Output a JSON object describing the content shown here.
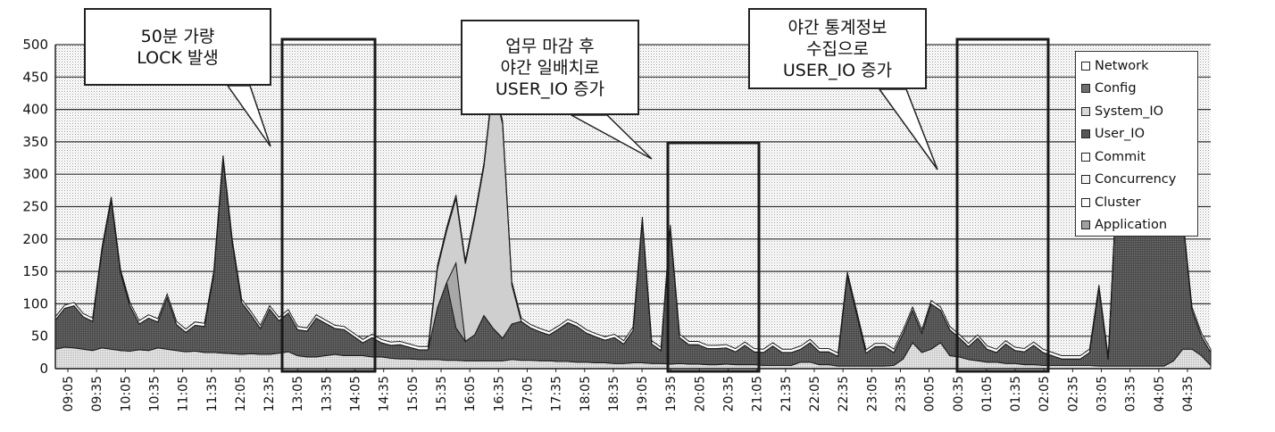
{
  "chart_data": {
    "type": "area",
    "stacked": true,
    "ylim": [
      0,
      500
    ],
    "yticks": [
      0,
      50,
      100,
      150,
      200,
      250,
      300,
      350,
      400,
      450,
      500
    ],
    "xtick_labels": [
      "09:05",
      "09:35",
      "10:05",
      "10:35",
      "11:05",
      "11:35",
      "12:05",
      "12:35",
      "13:05",
      "13:35",
      "14:05",
      "14:35",
      "15:05",
      "15:35",
      "16:05",
      "16:35",
      "17:05",
      "17:35",
      "18:05",
      "18:35",
      "19:05",
      "19:35",
      "20:05",
      "20:35",
      "21:05",
      "21:35",
      "22:05",
      "22:35",
      "23:05",
      "23:35",
      "00:05",
      "00:35",
      "01:05",
      "01:35",
      "02:05",
      "02:35",
      "03:05",
      "03:35",
      "04:05",
      "04:35"
    ],
    "grid": true,
    "legend_position": "right",
    "series": [
      {
        "name": "Network",
        "color": "#ffffff",
        "values": []
      },
      {
        "name": "Config",
        "color": "#6f6f6f",
        "values": []
      },
      {
        "name": "System_IO",
        "color": "#d8d8d8",
        "values": [
          30,
          33,
          32,
          30,
          28,
          32,
          30,
          28,
          27,
          29,
          28,
          32,
          30,
          28,
          26,
          27,
          25,
          25,
          24,
          23,
          22,
          23,
          22,
          22,
          24,
          26,
          20,
          18,
          18,
          20,
          22,
          20,
          20,
          20,
          18,
          18,
          16,
          15,
          15,
          14,
          14,
          14,
          13,
          13,
          12,
          12,
          12,
          12,
          12,
          14,
          13,
          13,
          12,
          12,
          11,
          11,
          10,
          10,
          9,
          9,
          8,
          8,
          9,
          9,
          8,
          8,
          7,
          8,
          7,
          7,
          6,
          6,
          7,
          6,
          6,
          6,
          5,
          5,
          5,
          5,
          10,
          10,
          6,
          6,
          4,
          4,
          4,
          4,
          4,
          4,
          5,
          15,
          40,
          25,
          30,
          40,
          20,
          18,
          14,
          12,
          10,
          10,
          8,
          8,
          6,
          6,
          5,
          5,
          5,
          5,
          5,
          5,
          4,
          4,
          4,
          4,
          4,
          4,
          4,
          4,
          12,
          30,
          30,
          20,
          5
        ]
      },
      {
        "name": "User_IO",
        "color": "#555555",
        "values": [
          45,
          60,
          65,
          50,
          45,
          150,
          230,
          120,
          70,
          40,
          50,
          40,
          80,
          40,
          30,
          40,
          40,
          120,
          300,
          170,
          80,
          60,
          40,
          70,
          50,
          60,
          40,
          40,
          60,
          50,
          40,
          40,
          30,
          20,
          30,
          22,
          20,
          22,
          18,
          15,
          15,
          80,
          120,
          50,
          30,
          40,
          70,
          50,
          35,
          55,
          60,
          50,
          45,
          40,
          50,
          60,
          55,
          45,
          40,
          35,
          40,
          30,
          50,
          220,
          30,
          20,
          210,
          40,
          30,
          30,
          25,
          25,
          25,
          20,
          30,
          20,
          20,
          30,
          20,
          20,
          20,
          30,
          20,
          20,
          15,
          140,
          80,
          20,
          30,
          30,
          20,
          40,
          50,
          30,
          70,
          50,
          40,
          30,
          20,
          35,
          20,
          15,
          30,
          20,
          20,
          30,
          20,
          15,
          10,
          10,
          10,
          20,
          120,
          10,
          300,
          440,
          470,
          430,
          450,
          400,
          380,
          200,
          60,
          30,
          20
        ]
      },
      {
        "name": "Commit",
        "color": "#ffffff",
        "values": [
          5,
          5,
          5,
          5,
          5,
          5,
          5,
          5,
          5,
          5,
          5,
          5,
          5,
          5,
          5,
          5,
          5,
          5,
          5,
          5,
          5,
          5,
          5,
          5,
          5,
          5,
          5,
          5,
          5,
          5,
          5,
          5,
          5,
          5,
          5,
          5,
          5,
          5,
          5,
          5,
          5,
          5,
          5,
          5,
          5,
          5,
          5,
          5,
          5,
          5,
          5,
          5,
          5,
          5,
          5,
          5,
          5,
          5,
          5,
          5,
          5,
          5,
          5,
          5,
          5,
          5,
          5,
          5,
          5,
          5,
          5,
          5,
          5,
          5,
          5,
          5,
          5,
          5,
          5,
          5,
          5,
          5,
          5,
          5,
          5,
          5,
          5,
          5,
          5,
          5,
          5,
          5,
          5,
          5,
          5,
          5,
          5,
          5,
          5,
          5,
          5,
          5,
          5,
          5,
          5,
          5,
          5,
          5,
          5,
          5,
          5,
          5,
          5,
          5,
          5,
          5,
          5,
          5,
          5,
          5,
          5,
          5,
          5,
          5,
          5
        ]
      },
      {
        "name": "Concurrency",
        "color": "#f4f4f4",
        "values": [
          0,
          0,
          0,
          0,
          0,
          0,
          0,
          0,
          0,
          0,
          0,
          0,
          0,
          0,
          0,
          0,
          0,
          0,
          0,
          0,
          0,
          0,
          0,
          0,
          0,
          0,
          0,
          0,
          0,
          0,
          0,
          0,
          0,
          0,
          0,
          0,
          0,
          0,
          0,
          0,
          0,
          60,
          80,
          100,
          120,
          180,
          230,
          380,
          330,
          60,
          0,
          0,
          0,
          0,
          0,
          0,
          0,
          0,
          0,
          0,
          0,
          0,
          0,
          0,
          0,
          0,
          0,
          0,
          0,
          0,
          0,
          0,
          0,
          0,
          0,
          0,
          0,
          0,
          0,
          0,
          0,
          0,
          0,
          0,
          0,
          0,
          0,
          0,
          0,
          0,
          0,
          0,
          0,
          0,
          0,
          0,
          0,
          0,
          0,
          0,
          0,
          0,
          0,
          0,
          0,
          0,
          0,
          0,
          0,
          0,
          0,
          0,
          0,
          0,
          0,
          0,
          0,
          0,
          0,
          0,
          0,
          0,
          0,
          0,
          0
        ]
      },
      {
        "name": "Cluster",
        "color": "#ffffff",
        "values": []
      },
      {
        "name": "Application",
        "color": "#a0a0a0",
        "values": [
          0,
          0,
          0,
          0,
          0,
          0,
          0,
          0,
          0,
          0,
          0,
          0,
          0,
          0,
          0,
          0,
          0,
          0,
          0,
          0,
          0,
          0,
          0,
          0,
          0,
          0,
          0,
          0,
          0,
          0,
          0,
          0,
          0,
          0,
          0,
          0,
          0,
          0,
          0,
          0,
          0,
          0,
          0,
          100,
          0,
          0,
          0,
          0,
          0,
          0,
          0,
          0,
          0,
          0,
          0,
          0,
          0,
          0,
          0,
          0,
          0,
          0,
          0,
          0,
          0,
          0,
          0,
          0,
          0,
          0,
          0,
          0,
          0,
          0,
          0,
          0,
          0,
          0,
          0,
          0,
          0,
          0,
          0,
          0,
          0,
          0,
          0,
          0,
          0,
          0,
          0,
          0,
          0,
          0,
          0,
          0,
          0,
          0,
          0,
          0,
          0,
          0,
          0,
          0,
          0,
          0,
          0,
          0,
          0,
          0,
          0,
          0,
          0,
          0,
          0,
          0,
          0,
          0,
          0,
          0,
          0,
          0,
          0,
          0,
          0
        ]
      }
    ],
    "annotations": [
      {
        "lines": [
          "50분 가량",
          "LOCK 발생"
        ]
      },
      {
        "lines": [
          "업무 마감 후",
          "야간 일배치로",
          "USER_IO 증가"
        ]
      },
      {
        "lines": [
          "야간 통계정보",
          "수집으로",
          "USER_IO 증가"
        ]
      }
    ]
  }
}
